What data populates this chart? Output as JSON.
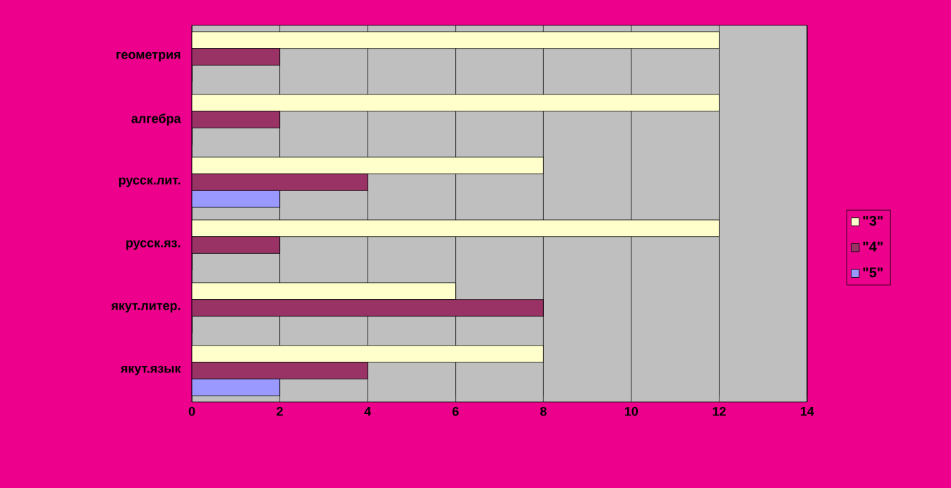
{
  "chart_data": {
    "type": "bar",
    "orientation": "horizontal",
    "categories": [
      "геометрия",
      "алгебра",
      "русск.лит.",
      "русск.яз.",
      "якут.литер.",
      "якут.язык"
    ],
    "series": [
      {
        "name": "\"3\"",
        "color": "#ffffcc",
        "values": [
          12,
          12,
          8,
          12,
          6,
          8
        ]
      },
      {
        "name": "\"4\"",
        "color": "#993366",
        "values": [
          2,
          2,
          4,
          2,
          8,
          4
        ]
      },
      {
        "name": "\"5\"",
        "color": "#9999ff",
        "values": [
          0,
          0,
          2,
          0,
          0,
          2
        ]
      }
    ],
    "xlim": [
      0,
      14
    ],
    "xticks": [
      0,
      2,
      4,
      6,
      8,
      10,
      12,
      14
    ],
    "grid": "x",
    "legend": "right"
  }
}
